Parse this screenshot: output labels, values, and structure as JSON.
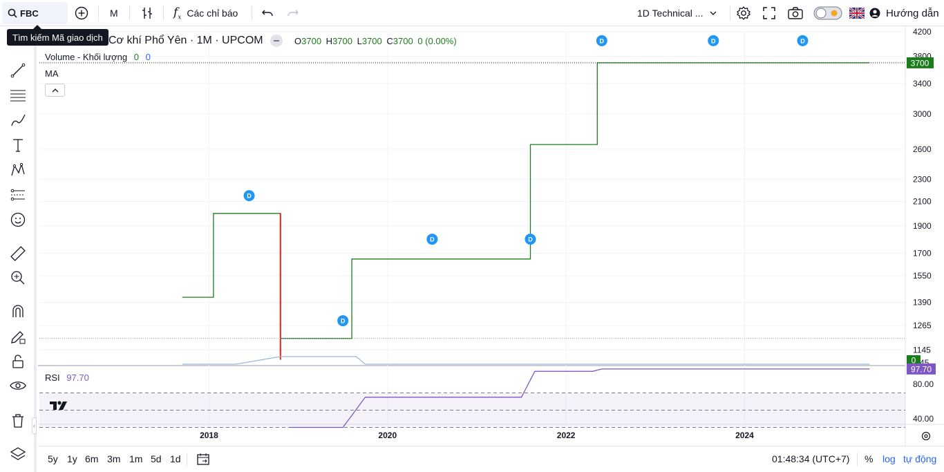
{
  "toolbar": {
    "symbol": "FBC",
    "interval": "M",
    "indicators_label": "Các chỉ báo",
    "layout_label": "1D Technical ...",
    "help_label": "Hướng dẫn",
    "search_tooltip": "Tìm kiếm Mã giao dịch"
  },
  "legend": {
    "title": "Cơ khí Phổ Yên · 1M · UPCOM",
    "o_label": "O",
    "o_value": "3700",
    "h_label": "H",
    "h_value": "3700",
    "l_label": "L",
    "l_value": "3700",
    "c_label": "C",
    "c_value": "3700",
    "change": "0 (0.00%)",
    "volume_label": "Volume - Khối lượng",
    "volume_v1": "0",
    "volume_v2": "0",
    "ma_label": "MA",
    "rsi_label": "RSI",
    "rsi_value": "97.70"
  },
  "colors": {
    "up": "#1b7c1b",
    "down": "#e8211d",
    "rsi": "#7e57c2",
    "dividend_marker": "#2196f3",
    "volume_line": "#9db8d6",
    "price_badge": "#1b7c1b"
  },
  "bottom": {
    "ranges": [
      "5y",
      "1y",
      "6m",
      "3m",
      "1m",
      "5d",
      "1d"
    ],
    "clock": "01:48:34 (UTC+7)",
    "percent": "%",
    "log": "log",
    "auto": "tự động"
  },
  "chart_data": {
    "type": "line",
    "price_axis_ticks": [
      4200,
      3800,
      3400,
      3000,
      2600,
      2300,
      2100,
      1900,
      1700,
      1550,
      1390,
      1265,
      1145
    ],
    "price_axis_partial_label": "45",
    "current_price_label": "3700",
    "volume_badge": "0",
    "x_ticks": [
      "2018",
      "2020",
      "2022",
      "2024"
    ],
    "x_range": [
      2016.1,
      2025.8
    ],
    "y_range": [
      1080,
      4200
    ],
    "price_scale": "log",
    "price_series": [
      {
        "x": 2017.7,
        "y": 1420
      },
      {
        "x": 2018.05,
        "y": 1420
      },
      {
        "x": 2018.05,
        "y": 2000
      },
      {
        "x": 2018.8,
        "y": 2000
      },
      {
        "x": 2018.8,
        "y": 1200
      },
      {
        "x": 2019.6,
        "y": 1200
      },
      {
        "x": 2019.6,
        "y": 1660
      },
      {
        "x": 2021.6,
        "y": 1660
      },
      {
        "x": 2021.6,
        "y": 2650
      },
      {
        "x": 2022.35,
        "y": 2650
      },
      {
        "x": 2022.35,
        "y": 3700
      },
      {
        "x": 2025.4,
        "y": 3700
      }
    ],
    "down_candle": {
      "x": 2018.8,
      "y_high": 2000,
      "y_low": 1100
    },
    "dividend_markers": [
      {
        "x": 2018.45,
        "y": 2150,
        "label": "D"
      },
      {
        "x": 2019.5,
        "y": 1290,
        "label": "D"
      },
      {
        "x": 2020.5,
        "y": 1800,
        "label": "D"
      },
      {
        "x": 2021.6,
        "y": 1800,
        "label": "D"
      },
      {
        "x": 2022.4,
        "y": 4050,
        "label": "D"
      },
      {
        "x": 2023.65,
        "y": 4050,
        "label": "D"
      },
      {
        "x": 2024.65,
        "y": 4050,
        "label": "D"
      }
    ],
    "rsi_ticks": [
      80.0,
      40.0
    ],
    "rsi_range": [
      25,
      105
    ],
    "rsi_bands": [
      70,
      50,
      30
    ],
    "rsi_series": [
      {
        "x": 2018.9,
        "y": 30
      },
      {
        "x": 2019.5,
        "y": 30
      },
      {
        "x": 2019.75,
        "y": 65
      },
      {
        "x": 2021.5,
        "y": 65
      },
      {
        "x": 2021.65,
        "y": 95
      },
      {
        "x": 2022.3,
        "y": 95
      },
      {
        "x": 2022.4,
        "y": 97.7
      },
      {
        "x": 2025.4,
        "y": 97.7
      }
    ]
  }
}
